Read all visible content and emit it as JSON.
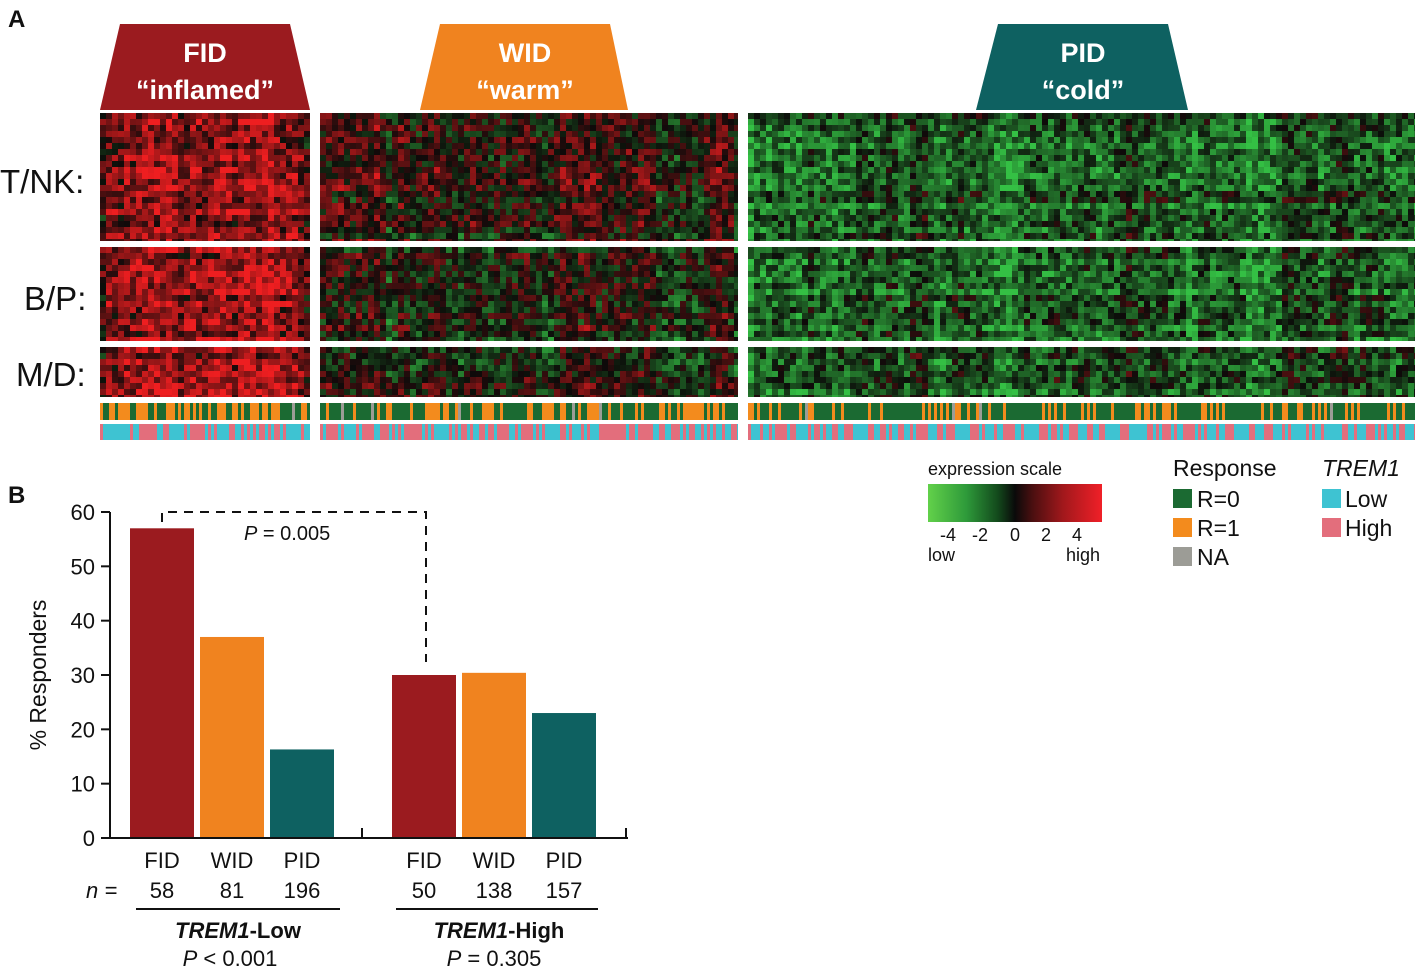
{
  "colors": {
    "fid": "#9b1b1f",
    "wid": "#f0831f",
    "pid": "#0e6161",
    "r0": "#1b6a32",
    "r1": "#f38b1d",
    "na": "#9c9c96",
    "trem_low": "#3ec3d2",
    "trem_high": "#e36e7c",
    "heat_high": "#ee2121",
    "heat_low": "#35c043"
  },
  "panel_a": {
    "label": "A",
    "groups": [
      {
        "name": "FID",
        "descriptor": "“inflamed”"
      },
      {
        "name": "WID",
        "descriptor": "“warm”"
      },
      {
        "name": "PID",
        "descriptor": "“cold”"
      }
    ],
    "row_labels": [
      "T/NK:",
      "B/P:",
      "M/D:"
    ],
    "expression_scale": {
      "title": "expression scale",
      "ticks": [
        "-4",
        "-2",
        "0",
        "2",
        "4"
      ],
      "low_label": "low",
      "high_label": "high"
    },
    "response_legend": {
      "title": "Response",
      "items": [
        {
          "label": "R=0",
          "color_key": "r0"
        },
        {
          "label": "R=1",
          "color_key": "r1"
        },
        {
          "label": "NA",
          "color_key": "na"
        }
      ]
    },
    "trem1_legend": {
      "title": "TREM1",
      "items": [
        {
          "label": "Low",
          "color_key": "trem_low"
        },
        {
          "label": "High",
          "color_key": "trem_high"
        }
      ]
    }
  },
  "panel_b": {
    "label": "B",
    "n_prefix": "n =",
    "comparison_p": {
      "italic": "P",
      "text": " = 0.005"
    },
    "groups": [
      {
        "name_italic": "TREM1",
        "name_suffix": "-Low",
        "p_italic": "P",
        "p_text": " < 0.001"
      },
      {
        "name_italic": "TREM1",
        "name_suffix": "-High",
        "p_italic": "P",
        "p_text": " = 0.305"
      }
    ]
  },
  "chart_data": {
    "type": "bar",
    "title": "",
    "xlabel": "",
    "ylabel": "% Responders",
    "ylim": [
      0,
      60
    ],
    "yticks": [
      0,
      10,
      20,
      30,
      40,
      50,
      60
    ],
    "bars": [
      {
        "category": "FID",
        "n": "58",
        "group": "TREM1-Low",
        "value": 57,
        "color_key": "fid"
      },
      {
        "category": "WID",
        "n": "81",
        "group": "TREM1-Low",
        "value": 37,
        "color_key": "wid"
      },
      {
        "category": "PID",
        "n": "196",
        "group": "TREM1-Low",
        "value": 16.3,
        "color_key": "pid"
      },
      {
        "category": "FID",
        "n": "50",
        "group": "TREM1-High",
        "value": 30,
        "color_key": "fid"
      },
      {
        "category": "WID",
        "n": "138",
        "group": "TREM1-High",
        "value": 30.4,
        "color_key": "wid"
      },
      {
        "category": "PID",
        "n": "157",
        "group": "TREM1-High",
        "value": 23,
        "color_key": "pid"
      }
    ]
  }
}
